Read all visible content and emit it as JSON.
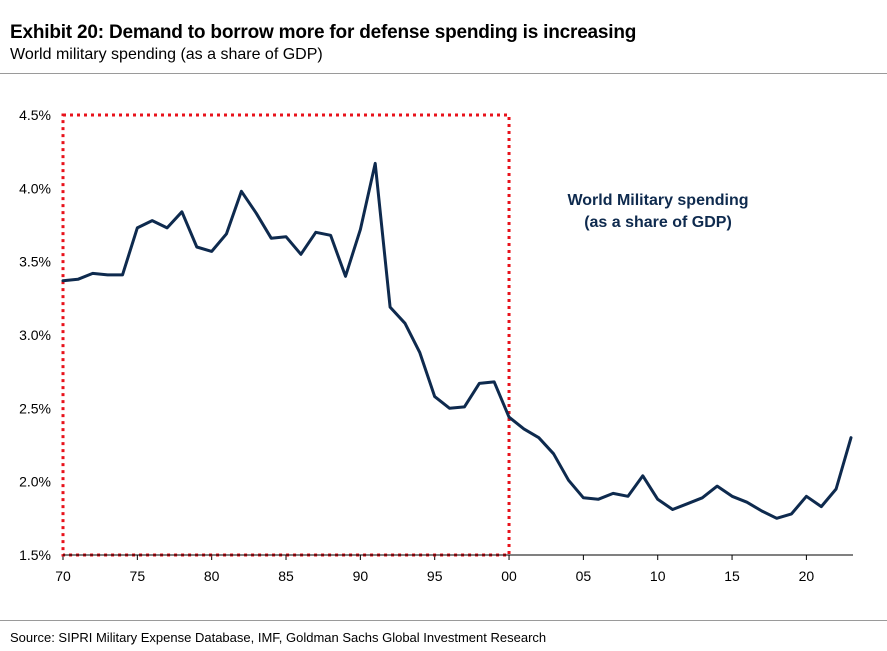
{
  "title": "Exhibit 20: Demand to borrow more for defense spending is increasing",
  "subtitle": "World military spending (as a share of GDP)",
  "source": "Source: SIPRI Military Expense Database, IMF, Goldman Sachs Global Investment Research",
  "chart_data": {
    "type": "line",
    "xlabel": "",
    "ylabel": "",
    "xlim": [
      1970,
      2023
    ],
    "ylim": [
      1.5,
      4.5
    ],
    "grid": false,
    "x_ticks": [
      1970,
      1975,
      1980,
      1985,
      1990,
      1995,
      2000,
      2005,
      2010,
      2015,
      2020
    ],
    "x_tick_labels": [
      "70",
      "75",
      "80",
      "85",
      "90",
      "95",
      "00",
      "05",
      "10",
      "15",
      "20"
    ],
    "y_ticks": [
      1.5,
      2.0,
      2.5,
      3.0,
      3.5,
      4.0,
      4.5
    ],
    "y_tick_labels": [
      "1.5%",
      "2.0%",
      "2.5%",
      "3.0%",
      "3.5%",
      "4.0%",
      "4.5%"
    ],
    "annotation": [
      "World Military spending",
      "(as a share of GDP)"
    ],
    "highlight_box": {
      "x": [
        1970,
        2000
      ],
      "y": [
        1.5,
        4.5
      ],
      "style": "dotted",
      "color": "#e8121b"
    },
    "series": [
      {
        "color": "#0e2a4e",
        "x": [
          1970,
          1971,
          1972,
          1973,
          1974,
          1975,
          1976,
          1977,
          1978,
          1979,
          1980,
          1981,
          1982,
          1983,
          1984,
          1985,
          1986,
          1987,
          1988,
          1989,
          1990,
          1991,
          1992,
          1993,
          1994,
          1995,
          1996,
          1997,
          1998,
          1999,
          2000,
          2001,
          2002,
          2003,
          2004,
          2005,
          2006,
          2007,
          2008,
          2009,
          2010,
          2011,
          2012,
          2013,
          2014,
          2015,
          2016,
          2017,
          2018,
          2019,
          2020,
          2021,
          2022,
          2023
        ],
        "y": [
          3.37,
          3.38,
          3.42,
          3.41,
          3.41,
          3.73,
          3.78,
          3.73,
          3.84,
          3.6,
          3.57,
          3.69,
          3.98,
          3.83,
          3.66,
          3.67,
          3.55,
          3.7,
          3.68,
          3.4,
          3.72,
          4.17,
          3.19,
          3.08,
          2.88,
          2.58,
          2.5,
          2.51,
          2.67,
          2.68,
          2.44,
          2.36,
          2.3,
          2.19,
          2.01,
          1.89,
          1.88,
          1.92,
          1.9,
          2.04,
          1.88,
          1.81,
          1.85,
          1.89,
          1.97,
          1.9,
          1.86,
          1.8,
          1.75,
          1.78,
          1.9,
          1.83,
          1.95,
          2.3
        ]
      }
    ]
  }
}
